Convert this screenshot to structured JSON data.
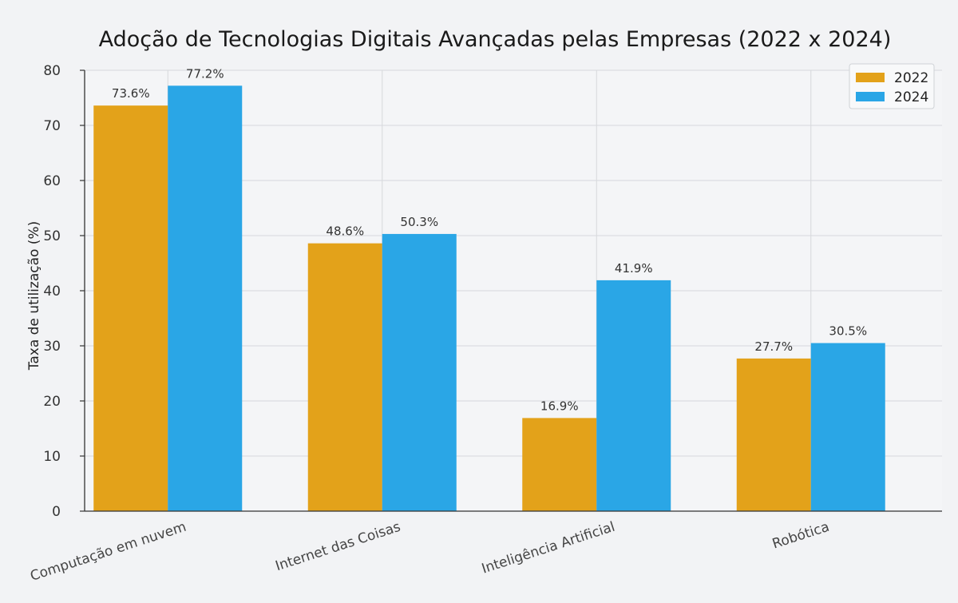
{
  "chart_data": {
    "type": "bar",
    "title": "Adoção de Tecnologias Digitais Avançadas pelas Empresas (2022 x 2024)",
    "xlabel": "",
    "ylabel": "Taxa de utilização (%)",
    "ylim": [
      0,
      80
    ],
    "yticks": [
      0,
      10,
      20,
      30,
      40,
      50,
      60,
      70,
      80
    ],
    "grid": true,
    "legend_position": "top-right",
    "categories": [
      "Computação em nuvem",
      "Internet das Coisas",
      "Inteligência Artificial",
      "Robótica"
    ],
    "series": [
      {
        "name": "2022",
        "color": "#e3a21a",
        "values": [
          73.6,
          48.6,
          16.9,
          27.7
        ],
        "labels": [
          "73.6%",
          "48.6%",
          "16.9%",
          "27.7%"
        ]
      },
      {
        "name": "2024",
        "color": "#2aa6e6",
        "values": [
          77.2,
          50.3,
          41.9,
          30.5
        ],
        "labels": [
          "77.2%",
          "50.3%",
          "41.9%",
          "30.5%"
        ]
      }
    ]
  }
}
